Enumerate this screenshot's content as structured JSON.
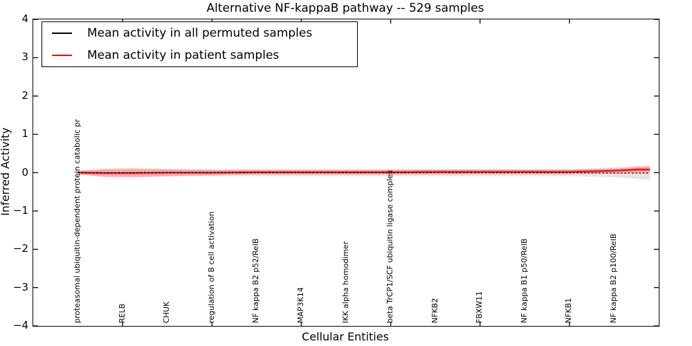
{
  "figure": {
    "title": "Alternative NF-kappaB pathway -- 529 samples",
    "background_color": "#ffffff",
    "accent_color": "#ff0000"
  },
  "legend": {
    "entries": [
      {
        "label": "Mean activity in all permuted samples",
        "color": "#000000"
      },
      {
        "label": "Mean activity in patient samples",
        "color": "#ff0000"
      }
    ]
  },
  "chart_data": {
    "type": "line",
    "title": "Alternative NF-kappaB pathway -- 529 samples",
    "xlabel": "Cellular Entities",
    "ylabel": "Inferred Activity",
    "ylim": [
      -4,
      4
    ],
    "xlim": [
      0,
      14
    ],
    "yticks": [
      4,
      3,
      2,
      1,
      0,
      -1,
      -2,
      -3,
      -4
    ],
    "x_positions": [
      1,
      2,
      3,
      4,
      5,
      6,
      7,
      8,
      9,
      10,
      11,
      12,
      13
    ],
    "x_marked_ticks": [
      2,
      4,
      6,
      8,
      10,
      12
    ],
    "grid": false,
    "legend_position": "upper left",
    "categories": [
      "proteasomal ubiquitin-dependent protein catabolic pr",
      "RELB",
      "CHUK",
      "regulation of B cell activation",
      "NF kappa B2 p52/RelB",
      "MAP3K14",
      "IKK alpha homodimer",
      "beta TrCP1/SCF ubiquitin ligase complex",
      "NFKB2",
      "FBXW11",
      "NF kappa B1 p50/RelB",
      "NFKB1",
      "NF kappa B2 p100/RelB"
    ],
    "series": [
      {
        "name": "Mean activity in all permuted samples",
        "color": "#000000",
        "line_style": "dashed",
        "values": [
          0,
          0,
          0,
          0,
          0,
          0,
          0,
          0,
          0,
          0,
          0,
          0,
          -0.01
        ],
        "band_halfwidth": [
          0.06,
          0.1,
          0.1,
          0.09,
          0.09,
          0.09,
          0.09,
          0.09,
          0.09,
          0.09,
          0.09,
          0.09,
          0.11
        ],
        "band_color": "rgba(0,0,0,0.10)"
      },
      {
        "name": "Mean activity in patient samples",
        "color": "#ff0000",
        "line_style": "solid",
        "values": [
          0,
          -0.01,
          -0.01,
          0,
          0,
          0.01,
          0.01,
          0.01,
          0.02,
          0.02,
          0.02,
          0.02,
          0.05
        ],
        "band_halfwidth": [
          0.04,
          0.12,
          0.1,
          0.08,
          0.07,
          0.06,
          0.06,
          0.06,
          0.06,
          0.06,
          0.06,
          0.06,
          0.07
        ],
        "band_color": "rgba(255,0,0,0.22)"
      }
    ],
    "render_profile": {
      "x": [
        1,
        1.6,
        2.2,
        3,
        4,
        5,
        6,
        7,
        8,
        9,
        10,
        11,
        12,
        13,
        13.5,
        13.8
      ],
      "permuted_mean": [
        0,
        0,
        0,
        0,
        0,
        0,
        0,
        0,
        0,
        0,
        0,
        0,
        0,
        -0.01,
        -0.01,
        -0.01
      ],
      "permuted_halfwidth": [
        0.06,
        0.09,
        0.1,
        0.1,
        0.09,
        0.09,
        0.09,
        0.09,
        0.09,
        0.09,
        0.09,
        0.09,
        0.09,
        0.11,
        0.15,
        0.18
      ],
      "patient_mean": [
        0,
        -0.01,
        -0.01,
        0,
        0,
        0.01,
        0.01,
        0.01,
        0.01,
        0.02,
        0.02,
        0.02,
        0.02,
        0.05,
        0.08,
        0.08
      ],
      "patient_halfwidth": [
        0.04,
        0.11,
        0.12,
        0.09,
        0.07,
        0.06,
        0.06,
        0.06,
        0.06,
        0.06,
        0.06,
        0.06,
        0.06,
        0.07,
        0.09,
        0.09
      ]
    }
  }
}
